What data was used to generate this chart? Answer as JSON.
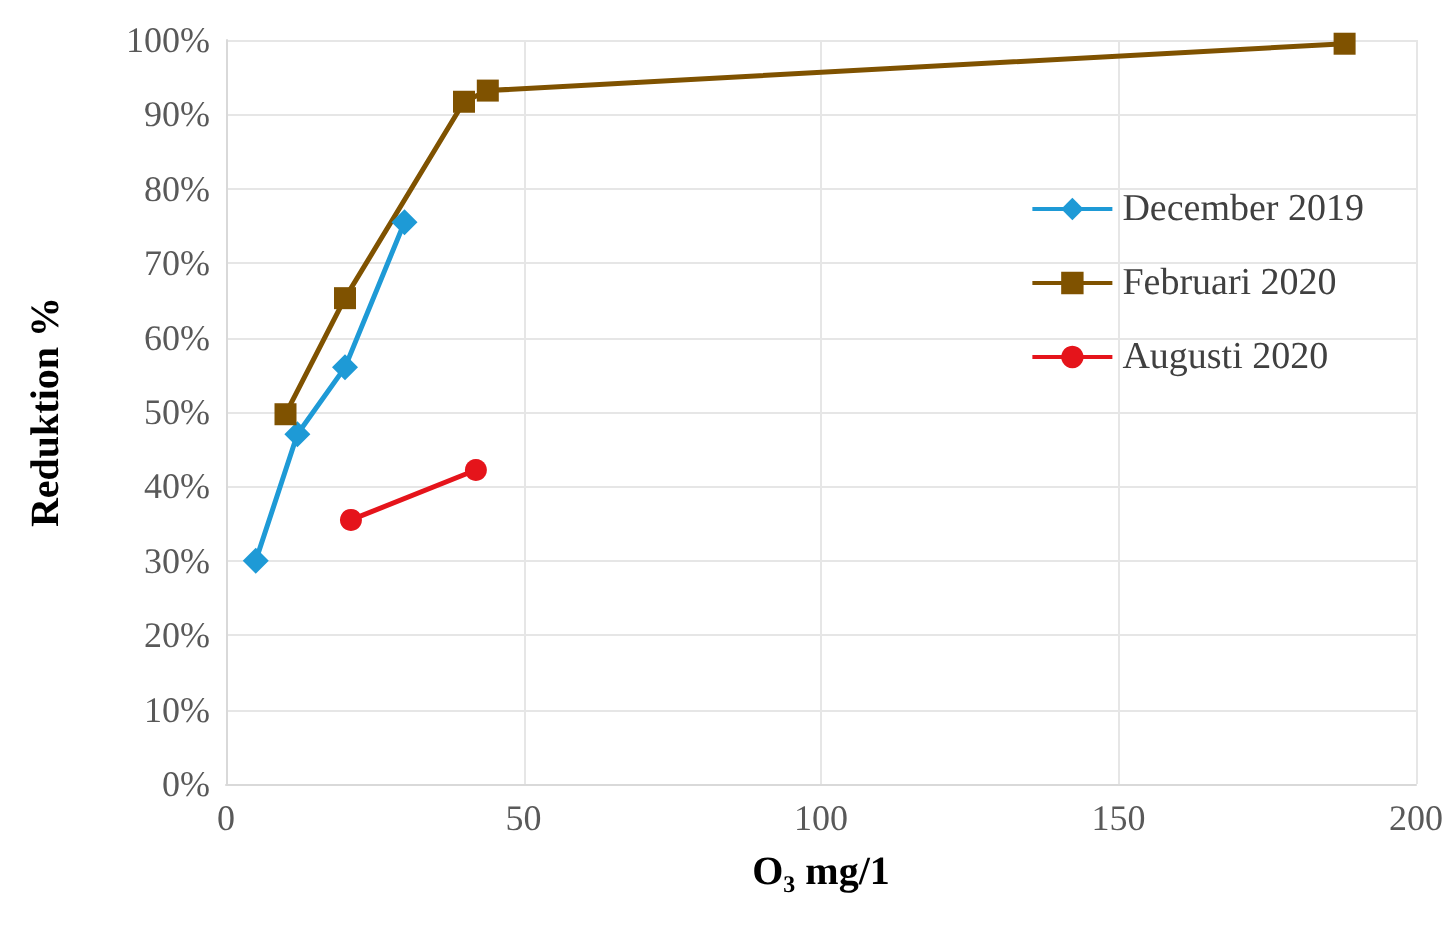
{
  "chart_data": {
    "type": "line",
    "xlabel": "O₃ mg/1",
    "ylabel": "Reduktion %",
    "xlim": [
      0,
      200
    ],
    "xticks": [
      0,
      50,
      100,
      150,
      200
    ],
    "ylim": [
      0,
      100
    ],
    "yticks": [
      {
        "value": 0,
        "label": "0%"
      },
      {
        "value": 10,
        "label": "10%"
      },
      {
        "value": 20,
        "label": "20%"
      },
      {
        "value": 30,
        "label": "30%"
      },
      {
        "value": 40,
        "label": "40%"
      },
      {
        "value": 50,
        "label": "50%"
      },
      {
        "value": 60,
        "label": "60%"
      },
      {
        "value": 70,
        "label": "70%"
      },
      {
        "value": 80,
        "label": "80%"
      },
      {
        "value": 90,
        "label": "90%"
      },
      {
        "value": 100,
        "label": "100%"
      }
    ],
    "grid": true,
    "legend": "right",
    "line_style": "solid",
    "series": [
      {
        "name": "December 2019",
        "color": "#1e9ad6",
        "marker": "diamond",
        "x": [
          5,
          12,
          20,
          30
        ],
        "values": [
          30,
          47,
          56,
          75.5
        ]
      },
      {
        "name": "Februari 2020",
        "color": "#7f5200",
        "marker": "square",
        "x": [
          10,
          20,
          40,
          44,
          188
        ],
        "values": [
          49.7,
          65.3,
          91.7,
          93.2,
          99.5
        ]
      },
      {
        "name": "Augusti 2020",
        "color": "#e5141b",
        "marker": "circle",
        "x": [
          21,
          42
        ],
        "values": [
          35.5,
          42.2
        ]
      }
    ]
  }
}
